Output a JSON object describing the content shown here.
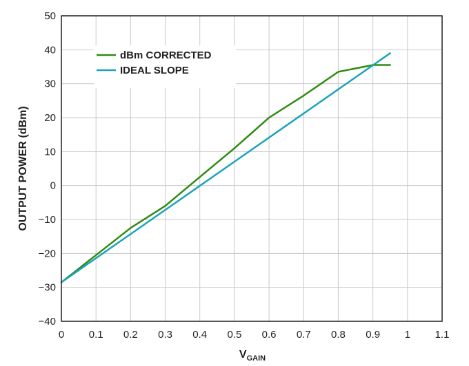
{
  "chart_data": {
    "type": "line",
    "xlabel": "V",
    "xlabel_sub": "GAIN",
    "ylabel": "OUTPUT POWER (dBm)",
    "xlim": [
      0,
      1.1
    ],
    "ylim": [
      -40,
      50
    ],
    "x_ticks": [
      0,
      0.1,
      0.2,
      0.3,
      0.4,
      0.5,
      0.6,
      0.7,
      0.8,
      0.9,
      1.0,
      1.1
    ],
    "x_tick_labels": [
      "0",
      "0.1",
      "0.2",
      "0.3",
      "0.4",
      "0.5",
      "0.6",
      "0.7",
      "0.8",
      "0.9",
      "1",
      "1.1"
    ],
    "y_ticks": [
      -40,
      -30,
      -20,
      -10,
      0,
      10,
      20,
      30,
      40,
      50
    ],
    "y_tick_labels": [
      "−40",
      "−30",
      "−20",
      "−10",
      "0",
      "10",
      "20",
      "30",
      "40",
      "50"
    ],
    "grid": true,
    "legend_position": "top-left",
    "series": [
      {
        "name": "dBm CORRECTED",
        "color": "#2e8b10",
        "x": [
          0,
          0.1,
          0.2,
          0.3,
          0.4,
          0.5,
          0.6,
          0.7,
          0.8,
          0.9,
          0.95
        ],
        "y": [
          -28.5,
          -20.5,
          -12.5,
          -6.0,
          2.5,
          11.0,
          20.0,
          26.5,
          33.5,
          35.5,
          35.5
        ]
      },
      {
        "name": "IDEAL SLOPE",
        "color": "#1aa3bb",
        "x": [
          0,
          0.95
        ],
        "y": [
          -28.5,
          39.0
        ]
      }
    ]
  }
}
